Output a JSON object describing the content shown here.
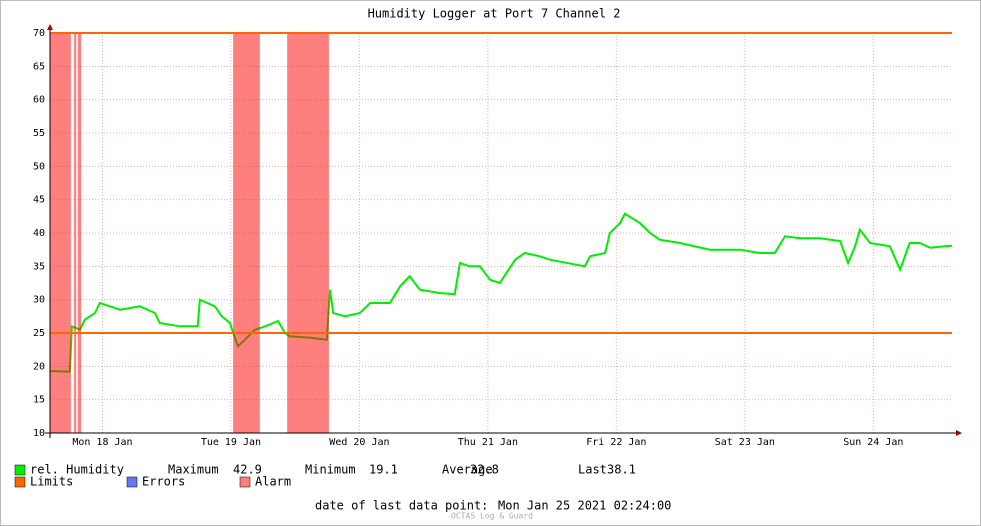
{
  "chart_data": {
    "type": "line",
    "title": "Humidity Logger at Port 7 Channel 2",
    "x": [
      2.2,
      5.9,
      6.3,
      7.8,
      8.7,
      10.6,
      11.5,
      13.4,
      15.3,
      19.0,
      21.8,
      22.7,
      26.5,
      29.8,
      30.2,
      33.0,
      34.3,
      35.8,
      37.3,
      38.6,
      40.5,
      42.4,
      44.8,
      46.1,
      47.0,
      50.8,
      53.9,
      54.5,
      55.1,
      57.3,
      60.1,
      62.0,
      65.7,
      67.6,
      69.4,
      71.3,
      75.0,
      77.8,
      78.8,
      80.6,
      82.5,
      84.4,
      86.2,
      89.1,
      90.9,
      93.7,
      95.6,
      102.1,
      103.1,
      105.9,
      106.8,
      108.7,
      109.6,
      112.4,
      114.3,
      116.1,
      119.9,
      125.5,
      127.3,
      131.1,
      134.8,
      137.6,
      139.5,
      142.3,
      146.0,
      149.8,
      151.3,
      152.6,
      153.5,
      155.4,
      159.1,
      161.0,
      162.8,
      164.7,
      166.6,
      169.4,
      170.7
    ],
    "series": [
      {
        "name": "rel. Humidity",
        "color": "#00ee00",
        "values": [
          19.3,
          19.2,
          26,
          25.5,
          27,
          28,
          29.5,
          29,
          28.5,
          29,
          28,
          26.5,
          26,
          26,
          30,
          29,
          27.5,
          26.5,
          23,
          24,
          25.5,
          26,
          26.8,
          25,
          24.5,
          24.3,
          24,
          31.5,
          28,
          27.5,
          28,
          29.5,
          29.5,
          32,
          33.5,
          31.5,
          31,
          30.8,
          35.5,
          35,
          35,
          33,
          32.5,
          36,
          37,
          36.5,
          36,
          35,
          36.5,
          37,
          40,
          41.5,
          42.9,
          41.5,
          40,
          39,
          38.5,
          37.5,
          37.5,
          37.5,
          37,
          37,
          39.5,
          39.2,
          39.2,
          38.8,
          35.5,
          38,
          40.5,
          38.5,
          38,
          34.5,
          38.5,
          38.5,
          37.8,
          38,
          38.1
        ]
      }
    ],
    "limits": {
      "name": "Limits",
      "color": "#ff6600",
      "values": [
        25,
        70
      ]
    },
    "errors": {
      "name": "Errors",
      "color": "#6677ee"
    },
    "alarm": {
      "name": "Alarm",
      "color": "#ff0000",
      "ranges": [
        [
          2.2,
          6.1
        ],
        [
          6.7,
          7.1
        ],
        [
          7.4,
          8.0
        ],
        [
          36.4,
          41.4
        ],
        [
          46.5,
          54.3
        ]
      ]
    },
    "stats": [
      {
        "label": "Maximum",
        "value": 42.9
      },
      {
        "label": "Minimum",
        "value": 19.1
      },
      {
        "label": "Average",
        "value": 32.8
      },
      {
        "label": "Last",
        "value": 38.1
      }
    ],
    "last_data_point": {
      "label": "date of last data point:",
      "value": "Mon Jan 25 2021 02:24:00"
    },
    "watermark": "OCTAS Log & Guard",
    "xlim": [
      2.2,
      170.7
    ],
    "xticks": [
      {
        "value": 12,
        "label": "Mon 18 Jan"
      },
      {
        "value": 36,
        "label": "Tue 19 Jan"
      },
      {
        "value": 60,
        "label": "Wed 20 Jan"
      },
      {
        "value": 84,
        "label": "Thu 21 Jan"
      },
      {
        "value": 108,
        "label": "Fri 22 Jan"
      },
      {
        "value": 132,
        "label": "Sat 23 Jan"
      },
      {
        "value": 156,
        "label": "Sun 24 Jan"
      }
    ],
    "ylim": [
      10,
      70
    ],
    "yticks": [
      10,
      15,
      20,
      25,
      30,
      35,
      40,
      45,
      50,
      55,
      60,
      65,
      70
    ],
    "grid": true
  }
}
